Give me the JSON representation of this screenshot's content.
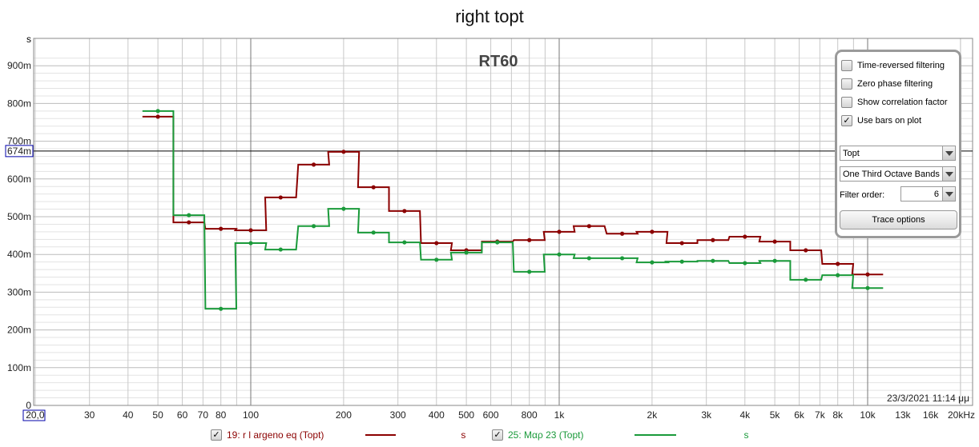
{
  "chart_data": {
    "type": "line",
    "title": "right topt",
    "annotation": "RT60",
    "ylabel": "s",
    "xlabel": "",
    "x_scale": "log",
    "xlim": [
      20,
      20000
    ],
    "ylim": [
      0,
      0.95
    ],
    "grid": true,
    "cursor": {
      "value": 0.674,
      "label": "674m"
    },
    "timestamp": "23/3/2021 11:14 μμ",
    "x_ticks": [
      {
        "v": 20,
        "l": "20,0"
      },
      {
        "v": 30,
        "l": "30"
      },
      {
        "v": 40,
        "l": "40"
      },
      {
        "v": 50,
        "l": "50"
      },
      {
        "v": 60,
        "l": "60"
      },
      {
        "v": 70,
        "l": "70"
      },
      {
        "v": 80,
        "l": "80"
      },
      {
        "v": 100,
        "l": "100"
      },
      {
        "v": 200,
        "l": "200"
      },
      {
        "v": 300,
        "l": "300"
      },
      {
        "v": 400,
        "l": "400"
      },
      {
        "v": 500,
        "l": "500"
      },
      {
        "v": 600,
        "l": "600"
      },
      {
        "v": 800,
        "l": "800"
      },
      {
        "v": 1000,
        "l": "1k"
      },
      {
        "v": 2000,
        "l": "2k"
      },
      {
        "v": 3000,
        "l": "3k"
      },
      {
        "v": 4000,
        "l": "4k"
      },
      {
        "v": 5000,
        "l": "5k"
      },
      {
        "v": 6000,
        "l": "6k"
      },
      {
        "v": 7000,
        "l": "7k"
      },
      {
        "v": 8000,
        "l": "8k"
      },
      {
        "v": 10000,
        "l": "10k"
      },
      {
        "v": 13000,
        "l": "13k"
      },
      {
        "v": 16000,
        "l": "16k"
      },
      {
        "v": 20000,
        "l": "20kHz"
      }
    ],
    "y_ticks": [
      {
        "v": 0,
        "l": "0"
      },
      {
        "v": 0.1,
        "l": "100m"
      },
      {
        "v": 0.2,
        "l": "200m"
      },
      {
        "v": 0.3,
        "l": "300m"
      },
      {
        "v": 0.4,
        "l": "400m"
      },
      {
        "v": 0.5,
        "l": "500m"
      },
      {
        "v": 0.6,
        "l": "600m"
      },
      {
        "v": 0.7,
        "l": "700m"
      },
      {
        "v": 0.8,
        "l": "800m"
      },
      {
        "v": 0.9,
        "l": "900m"
      }
    ],
    "x": [
      50,
      63,
      80,
      100,
      125,
      160,
      200,
      250,
      315,
      400,
      500,
      630,
      800,
      1000,
      1250,
      1600,
      2000,
      2500,
      3150,
      4000,
      5000,
      6300,
      8000,
      10000
    ],
    "series": [
      {
        "name": "19: r l argeno eq (Topt)",
        "unit": "s",
        "color": "#8b0000",
        "values": [
          0.765,
          0.485,
          0.468,
          0.464,
          0.551,
          0.638,
          0.672,
          0.578,
          0.515,
          0.43,
          0.411,
          0.434,
          0.438,
          0.46,
          0.475,
          0.455,
          0.46,
          0.43,
          0.438,
          0.447,
          0.434,
          0.411,
          0.375,
          0.347
        ]
      },
      {
        "name": "25: Μαρ 23 (Topt)",
        "unit": "s",
        "color": "#1a9a3a",
        "values": [
          0.78,
          0.504,
          0.256,
          0.43,
          0.413,
          0.475,
          0.521,
          0.458,
          0.432,
          0.386,
          0.405,
          0.432,
          0.354,
          0.4,
          0.39,
          0.39,
          0.379,
          0.381,
          0.383,
          0.377,
          0.383,
          0.333,
          0.345,
          0.311
        ]
      }
    ]
  },
  "panel": {
    "options": [
      {
        "label": "Time-reversed filtering",
        "checked": false
      },
      {
        "label": "Zero phase filtering",
        "checked": false
      },
      {
        "label": "Show correlation factor",
        "checked": false
      },
      {
        "label": "Use bars on plot",
        "checked": true
      }
    ],
    "metric": "Topt",
    "bands": "One Third Octave Bands",
    "filter_order_label": "Filter order:",
    "filter_order": "6",
    "trace_button": "Trace options"
  }
}
